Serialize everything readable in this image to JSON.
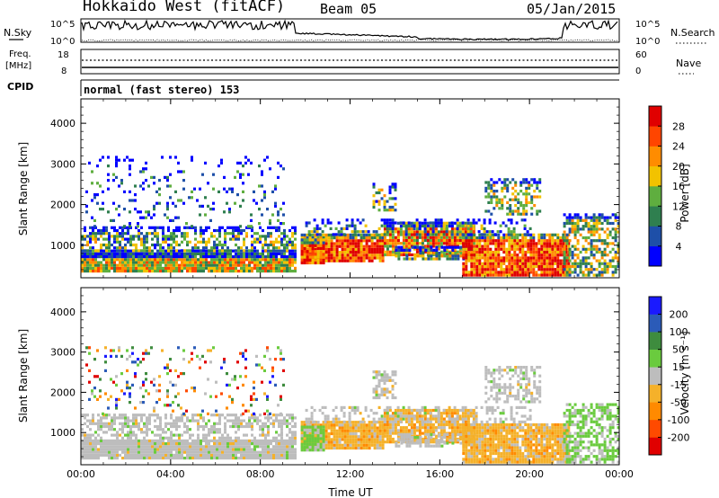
{
  "header": {
    "station": "Hokkaido West (fitACF)",
    "beam": "Beam 05",
    "date": "05/Jan/2015"
  },
  "aux": {
    "nsky_label": "N.Sky",
    "nsearch_label": "N.Search",
    "noise_ticks": [
      "10^5",
      "10^0"
    ],
    "freq_label": "Freq.",
    "freq_unit": "[MHz]",
    "freq_ticks": [
      "18",
      "8"
    ],
    "nave_label": "Nave",
    "nave_ticks": [
      "60",
      "0"
    ],
    "cpid_label": "CPID",
    "cpid_text": "normal (fast stereo) 153"
  },
  "colors": {
    "power": [
      "#0000ff",
      "#1e4fa8",
      "#2f7f4f",
      "#5fae3f",
      "#f2c200",
      "#ff8c00",
      "#ff4500",
      "#e00000"
    ],
    "velocity": [
      "#1a1aff",
      "#2b5bb8",
      "#3e8c3e",
      "#6acb3e",
      "#bdbdbd",
      "#f5b12a",
      "#ff8a00",
      "#ff4a00",
      "#e00000"
    ]
  },
  "chart_data": [
    {
      "type": "heatmap",
      "title": "Power",
      "xlabel": "",
      "ylabel": "Slant Range [km]",
      "x_ticks": [
        "00:00",
        "04:00",
        "08:00",
        "12:00",
        "16:00",
        "20:00",
        "00:00"
      ],
      "xlim_hours": [
        0,
        24
      ],
      "y_ticks": [
        "1000",
        "2000",
        "3000",
        "4000"
      ],
      "ylim": [
        200,
        4600
      ],
      "colorbar_label": "Power [dB]",
      "colorbar_ticks": [
        "4",
        "8",
        "12",
        "16",
        "20",
        "24",
        "28"
      ],
      "color_range": [
        0,
        32
      ]
    },
    {
      "type": "heatmap",
      "title": "Velocity",
      "xlabel": "Time UT",
      "ylabel": "Slant Range [km]",
      "x_ticks": [
        "00:00",
        "04:00",
        "08:00",
        "12:00",
        "16:00",
        "20:00",
        "00:00"
      ],
      "xlim_hours": [
        0,
        24
      ],
      "y_ticks": [
        "1000",
        "2000",
        "3000",
        "4000"
      ],
      "ylim": [
        200,
        4600
      ],
      "colorbar_label": "Velocity [m s⁻¹]",
      "colorbar_ticks": [
        "200",
        "100",
        "50",
        "15",
        "-15",
        "-50",
        "-100",
        "-200"
      ]
    }
  ]
}
